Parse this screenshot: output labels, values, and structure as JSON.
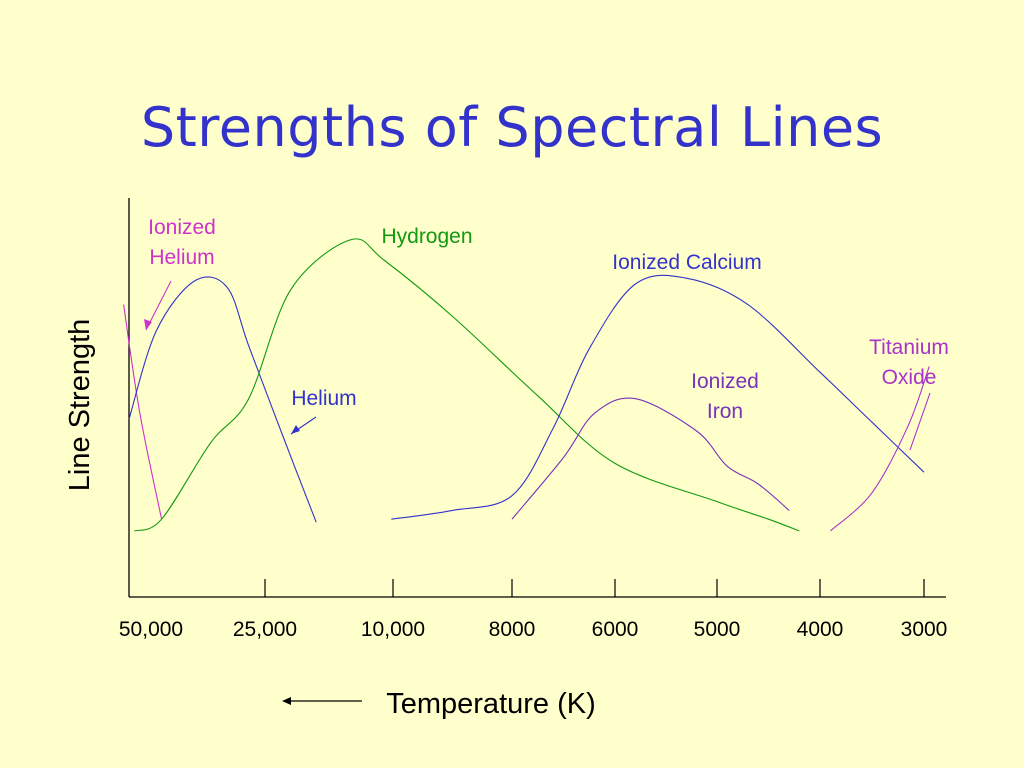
{
  "slide": {
    "title": "Strengths of Spectral Lines"
  },
  "chart_data": {
    "type": "line",
    "title": "Strengths of Spectral Lines",
    "xlabel": "Temperature (K)",
    "ylabel": "Line Strength",
    "x_ticks": [
      {
        "value": 50000,
        "label": "50,000"
      },
      {
        "value": 25000,
        "label": "25,000"
      },
      {
        "value": 10000,
        "label": "10,000"
      },
      {
        "value": 8000,
        "label": "8000"
      },
      {
        "value": 6000,
        "label": "6000"
      },
      {
        "value": 5000,
        "label": "5000"
      },
      {
        "value": 4000,
        "label": "4000"
      },
      {
        "value": 3000,
        "label": "3000"
      }
    ],
    "x_direction": "decreasing to the right",
    "ylim": [
      0,
      1
    ],
    "grid": false,
    "legend": "none",
    "series": [
      {
        "name": "Ionized Helium",
        "label_lines": [
          "Ionized",
          "Helium"
        ],
        "color": "#cc33cc",
        "points": [
          [
            51000,
            0.77
          ],
          [
            48000,
            0.4
          ],
          [
            44000,
            0.04
          ]
        ]
      },
      {
        "name": "Helium",
        "label_lines": [
          "Helium"
        ],
        "color": "#3333cc",
        "points": [
          [
            50000,
            0.38
          ],
          [
            45000,
            0.68
          ],
          [
            38000,
            0.85
          ],
          [
            32000,
            0.83
          ],
          [
            28000,
            0.63
          ],
          [
            23000,
            0.33
          ],
          [
            19000,
            0.03
          ]
        ]
      },
      {
        "name": "Hydrogen",
        "label_lines": [
          "Hydrogen"
        ],
        "color": "#119911",
        "points": [
          [
            49000,
            0.0
          ],
          [
            44000,
            0.04
          ],
          [
            35000,
            0.3
          ],
          [
            28000,
            0.45
          ],
          [
            22000,
            0.82
          ],
          [
            15000,
            0.99
          ],
          [
            11000,
            0.92
          ],
          [
            9000,
            0.73
          ],
          [
            7500,
            0.46
          ],
          [
            6000,
            0.23
          ],
          [
            5000,
            0.1
          ],
          [
            4500,
            0.04
          ],
          [
            4200,
            0.0
          ]
        ]
      },
      {
        "name": "Ionized Calcium",
        "label_lines": [
          "Ionized Calcium"
        ],
        "color": "#3333cc",
        "points": [
          [
            10200,
            0.04
          ],
          [
            9000,
            0.07
          ],
          [
            8000,
            0.12
          ],
          [
            7200,
            0.35
          ],
          [
            6500,
            0.62
          ],
          [
            5800,
            0.84
          ],
          [
            5300,
            0.86
          ],
          [
            4700,
            0.77
          ],
          [
            4000,
            0.54
          ],
          [
            3500,
            0.37
          ],
          [
            3000,
            0.2
          ]
        ]
      },
      {
        "name": "Ionized Iron",
        "label_lines": [
          "Ionized",
          "Iron"
        ],
        "color": "#7733bb",
        "points": [
          [
            8000,
            0.04
          ],
          [
            7000,
            0.25
          ],
          [
            6400,
            0.4
          ],
          [
            5800,
            0.45
          ],
          [
            5200,
            0.34
          ],
          [
            4900,
            0.22
          ],
          [
            4600,
            0.16
          ],
          [
            4300,
            0.07
          ]
        ]
      },
      {
        "name": "Titanium Oxide",
        "label_lines": [
          "Titanium",
          "Oxide"
        ],
        "color": "#aa33cc",
        "points": [
          [
            3900,
            0.0
          ],
          [
            3500,
            0.13
          ],
          [
            3150,
            0.36
          ],
          [
            2950,
            0.56
          ]
        ]
      }
    ]
  }
}
